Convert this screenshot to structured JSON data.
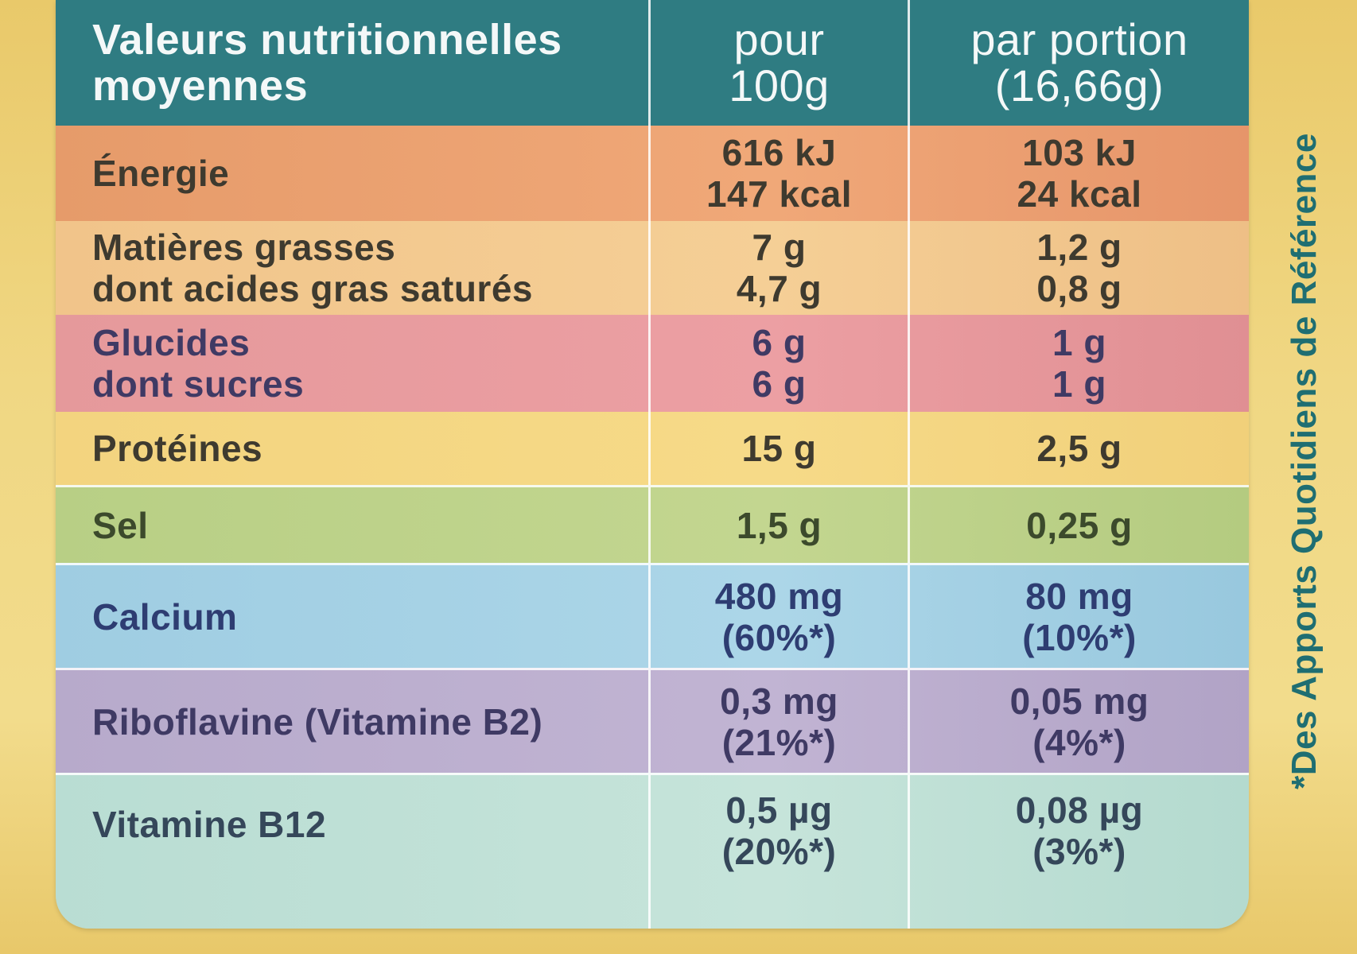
{
  "table": {
    "header": {
      "label_line1": "Valeurs nutritionnelles",
      "label_line2": "moyennes",
      "col1_line1": "pour",
      "col1_line2": "100g",
      "col2_line1": "par portion",
      "col2_line2": "(16,66g)"
    },
    "rows": [
      {
        "name": "Énergie",
        "name2": "",
        "per100_line1": "616 kJ",
        "per100_line2": "147 kcal",
        "portion_line1": "103 kJ",
        "portion_line2": "24 kcal"
      },
      {
        "name": "Matières grasses",
        "name2": "dont acides gras saturés",
        "per100_line1": "7 g",
        "per100_line2": "4,7 g",
        "portion_line1": "1,2 g",
        "portion_line2": "0,8 g"
      },
      {
        "name": "Glucides",
        "name2": "dont sucres",
        "per100_line1": "6 g",
        "per100_line2": "6 g",
        "portion_line1": "1 g",
        "portion_line2": "1 g"
      },
      {
        "name": "Protéines",
        "name2": "",
        "per100_line1": "15 g",
        "per100_line2": "",
        "portion_line1": "2,5 g",
        "portion_line2": ""
      },
      {
        "name": "Sel",
        "name2": "",
        "per100_line1": "1,5 g",
        "per100_line2": "",
        "portion_line1": "0,25 g",
        "portion_line2": ""
      },
      {
        "name": "Calcium",
        "name2": "",
        "per100_line1": "480 mg",
        "per100_line2": "(60%*)",
        "portion_line1": "80 mg",
        "portion_line2": "(10%*)"
      },
      {
        "name": "Riboflavine (Vitamine B2)",
        "name2": "",
        "per100_line1": "0,3 mg",
        "per100_line2": "(21%*)",
        "portion_line1": "0,05 mg",
        "portion_line2": "(4%*)"
      },
      {
        "name": "Vitamine B12",
        "name2": "",
        "per100_line1": "0,5 µg",
        "per100_line2": "(20%*)",
        "portion_line1": "0,08 µg",
        "portion_line2": "(3%*)"
      }
    ]
  },
  "footnote": "*Des Apports Quotidiens de Référence"
}
